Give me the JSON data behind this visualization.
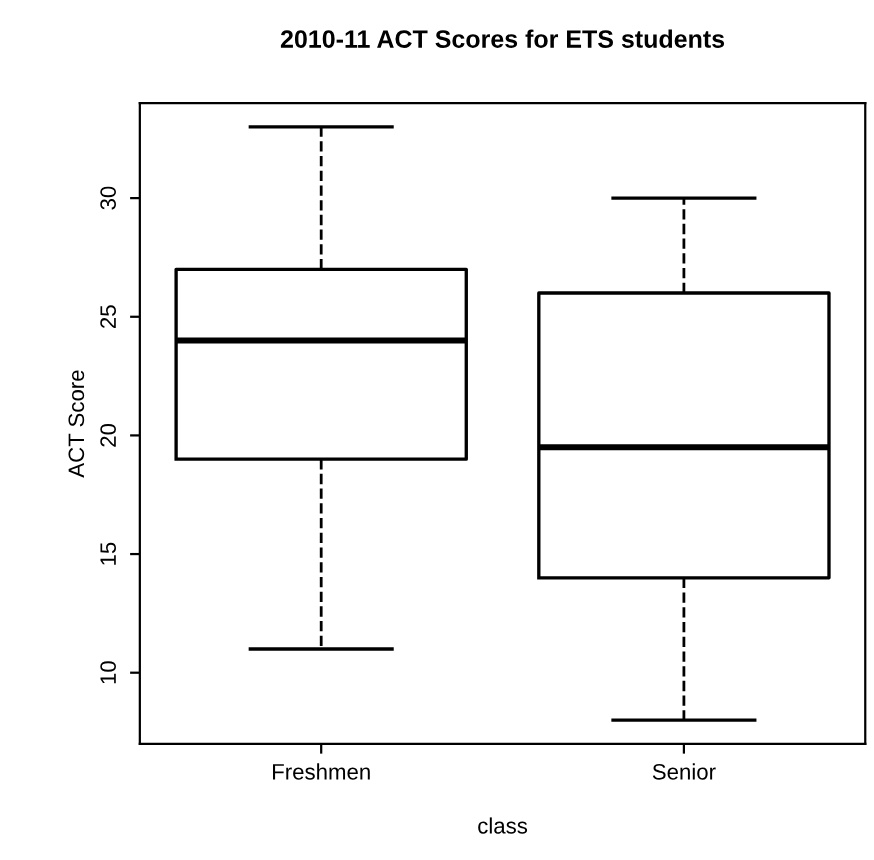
{
  "chart_data": {
    "type": "box",
    "title": "2010-11 ACT Scores for ETS students",
    "xlabel": "class",
    "ylabel": "ACT Score",
    "categories": [
      "Freshmen",
      "Senior"
    ],
    "boxes": [
      {
        "low": 11,
        "q1": 19,
        "median": 24,
        "q3": 27,
        "high": 33
      },
      {
        "low": 8,
        "q1": 14,
        "median": 19.5,
        "q3": 26,
        "high": 30
      }
    ],
    "ylim": [
      7,
      34
    ],
    "yticks": [
      10,
      15,
      20,
      25,
      30
    ],
    "grid": false,
    "line_style": "dashed"
  }
}
